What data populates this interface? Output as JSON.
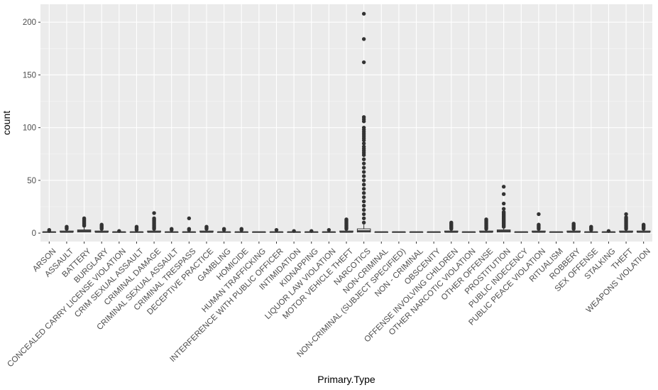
{
  "chart_data": {
    "type": "boxplot",
    "xlabel": "Primary.Type",
    "ylabel": "count",
    "ylim": [
      -8,
      217
    ],
    "y_ticks": [
      0,
      50,
      100,
      150,
      200
    ],
    "grid": true,
    "categories": [
      "ARSON",
      "ASSAULT",
      "BATTERY",
      "BURGLARY",
      "CONCEALED CARRY LICENSE VIOLATION",
      "CRIM SEXUAL ASSAULT",
      "CRIMINAL DAMAGE",
      "CRIMINAL SEXUAL ASSAULT",
      "CRIMINAL TRESPASS",
      "DECEPTIVE PRACTICE",
      "GAMBLING",
      "HOMICIDE",
      "HUMAN TRAFFICKING",
      "INTERFERENCE WITH PUBLIC OFFICER",
      "INTIMIDATION",
      "KIDNAPPING",
      "LIQUOR LAW VIOLATION",
      "MOTOR VEHICLE THEFT",
      "NARCOTICS",
      "NON-CRIMINAL",
      "NON-CRIMINAL (SUBJECT SPECIFIED)",
      "NON - CRIMINAL",
      "OBSCENITY",
      "OFFENSE INVOLVING CHILDREN",
      "OTHER NARCOTIC VIOLATION",
      "OTHER OFFENSE",
      "PROSTITUTION",
      "PUBLIC INDECENCY",
      "PUBLIC PEACE VIOLATION",
      "RITUALISM",
      "ROBBERY",
      "SEX OFFENSE",
      "STALKING",
      "THEFT",
      "WEAPONS VIOLATION"
    ],
    "boxes": [
      {
        "min": 1,
        "q1": 1,
        "median": 1,
        "q3": 1,
        "max": 1,
        "outliers": [
          2,
          3
        ]
      },
      {
        "min": 1,
        "q1": 1,
        "median": 1,
        "q3": 2,
        "max": 3,
        "outliers": [
          4,
          5,
          6
        ]
      },
      {
        "min": 1,
        "q1": 1,
        "median": 2,
        "q3": 3,
        "max": 6,
        "outliers": [
          7,
          8,
          9,
          10,
          11,
          12,
          13,
          14
        ]
      },
      {
        "min": 1,
        "q1": 1,
        "median": 1,
        "q3": 2,
        "max": 3,
        "outliers": [
          4,
          5,
          6,
          7,
          8
        ]
      },
      {
        "min": 1,
        "q1": 1,
        "median": 1,
        "q3": 1,
        "max": 1,
        "outliers": [
          2
        ]
      },
      {
        "min": 1,
        "q1": 1,
        "median": 1,
        "q3": 1,
        "max": 2,
        "outliers": [
          3,
          4,
          5,
          6
        ]
      },
      {
        "min": 1,
        "q1": 1,
        "median": 1,
        "q3": 2,
        "max": 3,
        "outliers": [
          4,
          5,
          6,
          7,
          8,
          9,
          10,
          11,
          12,
          13,
          14,
          19
        ]
      },
      {
        "min": 1,
        "q1": 1,
        "median": 1,
        "q3": 1,
        "max": 2,
        "outliers": [
          3,
          4
        ]
      },
      {
        "min": 1,
        "q1": 1,
        "median": 1,
        "q3": 1,
        "max": 2,
        "outliers": [
          3,
          4,
          14
        ]
      },
      {
        "min": 1,
        "q1": 1,
        "median": 1,
        "q3": 2,
        "max": 3,
        "outliers": [
          4,
          5,
          6
        ]
      },
      {
        "min": 1,
        "q1": 1,
        "median": 1,
        "q3": 1,
        "max": 2,
        "outliers": [
          3,
          4
        ]
      },
      {
        "min": 1,
        "q1": 1,
        "median": 1,
        "q3": 1,
        "max": 2,
        "outliers": [
          3,
          4
        ]
      },
      {
        "min": 1,
        "q1": 1,
        "median": 1,
        "q3": 1,
        "max": 1,
        "outliers": []
      },
      {
        "min": 1,
        "q1": 1,
        "median": 1,
        "q3": 1,
        "max": 2,
        "outliers": [
          3
        ]
      },
      {
        "min": 1,
        "q1": 1,
        "median": 1,
        "q3": 1,
        "max": 1,
        "outliers": [
          2
        ]
      },
      {
        "min": 1,
        "q1": 1,
        "median": 1,
        "q3": 1,
        "max": 1,
        "outliers": [
          2
        ]
      },
      {
        "min": 1,
        "q1": 1,
        "median": 1,
        "q3": 1,
        "max": 2,
        "outliers": [
          3
        ]
      },
      {
        "min": 1,
        "q1": 1,
        "median": 1,
        "q3": 2,
        "max": 3,
        "outliers": [
          4,
          5,
          6,
          7,
          8,
          9,
          10,
          11,
          12,
          13
        ]
      },
      {
        "min": 1,
        "q1": 1,
        "median": 2,
        "q3": 4,
        "max": 8,
        "outliers": [
          10,
          14,
          18,
          22,
          26,
          30,
          34,
          38,
          42,
          46,
          50,
          54,
          58,
          62,
          66,
          70,
          74,
          76,
          78,
          80,
          82,
          85,
          88,
          90,
          92,
          94,
          96,
          98,
          100,
          106,
          108,
          110,
          162,
          184,
          208
        ]
      },
      {
        "min": 1,
        "q1": 1,
        "median": 1,
        "q3": 1,
        "max": 1,
        "outliers": []
      },
      {
        "min": 1,
        "q1": 1,
        "median": 1,
        "q3": 1,
        "max": 1,
        "outliers": []
      },
      {
        "min": 1,
        "q1": 1,
        "median": 1,
        "q3": 1,
        "max": 1,
        "outliers": []
      },
      {
        "min": 1,
        "q1": 1,
        "median": 1,
        "q3": 1,
        "max": 1,
        "outliers": []
      },
      {
        "min": 1,
        "q1": 1,
        "median": 1,
        "q3": 2,
        "max": 3,
        "outliers": [
          4,
          5,
          6,
          7,
          8,
          9,
          10
        ]
      },
      {
        "min": 1,
        "q1": 1,
        "median": 1,
        "q3": 1,
        "max": 1,
        "outliers": []
      },
      {
        "min": 1,
        "q1": 1,
        "median": 1,
        "q3": 2,
        "max": 3,
        "outliers": [
          4,
          5,
          6,
          7,
          8,
          9,
          10,
          11,
          12,
          13
        ]
      },
      {
        "min": 1,
        "q1": 1,
        "median": 2,
        "q3": 3,
        "max": 5,
        "outliers": [
          6,
          7,
          8,
          9,
          10,
          11,
          12,
          13,
          14,
          15,
          16,
          17,
          18,
          19,
          20,
          23,
          28,
          37,
          44
        ]
      },
      {
        "min": 1,
        "q1": 1,
        "median": 1,
        "q3": 1,
        "max": 1,
        "outliers": []
      },
      {
        "min": 1,
        "q1": 1,
        "median": 1,
        "q3": 2,
        "max": 3,
        "outliers": [
          4,
          5,
          6,
          7,
          8,
          18
        ]
      },
      {
        "min": 1,
        "q1": 1,
        "median": 1,
        "q3": 1,
        "max": 1,
        "outliers": []
      },
      {
        "min": 1,
        "q1": 1,
        "median": 1,
        "q3": 2,
        "max": 3,
        "outliers": [
          4,
          5,
          6,
          7,
          8,
          9
        ]
      },
      {
        "min": 1,
        "q1": 1,
        "median": 1,
        "q3": 1,
        "max": 2,
        "outliers": [
          3,
          4,
          5,
          6
        ]
      },
      {
        "min": 1,
        "q1": 1,
        "median": 1,
        "q3": 1,
        "max": 1,
        "outliers": [
          2
        ]
      },
      {
        "min": 1,
        "q1": 1,
        "median": 1,
        "q3": 2,
        "max": 3,
        "outliers": [
          4,
          5,
          6,
          7,
          8,
          9,
          10,
          11,
          12,
          13,
          14,
          15,
          18
        ]
      },
      {
        "min": 1,
        "q1": 1,
        "median": 1,
        "q3": 2,
        "max": 3,
        "outliers": [
          4,
          5,
          6,
          7,
          8
        ]
      }
    ]
  }
}
